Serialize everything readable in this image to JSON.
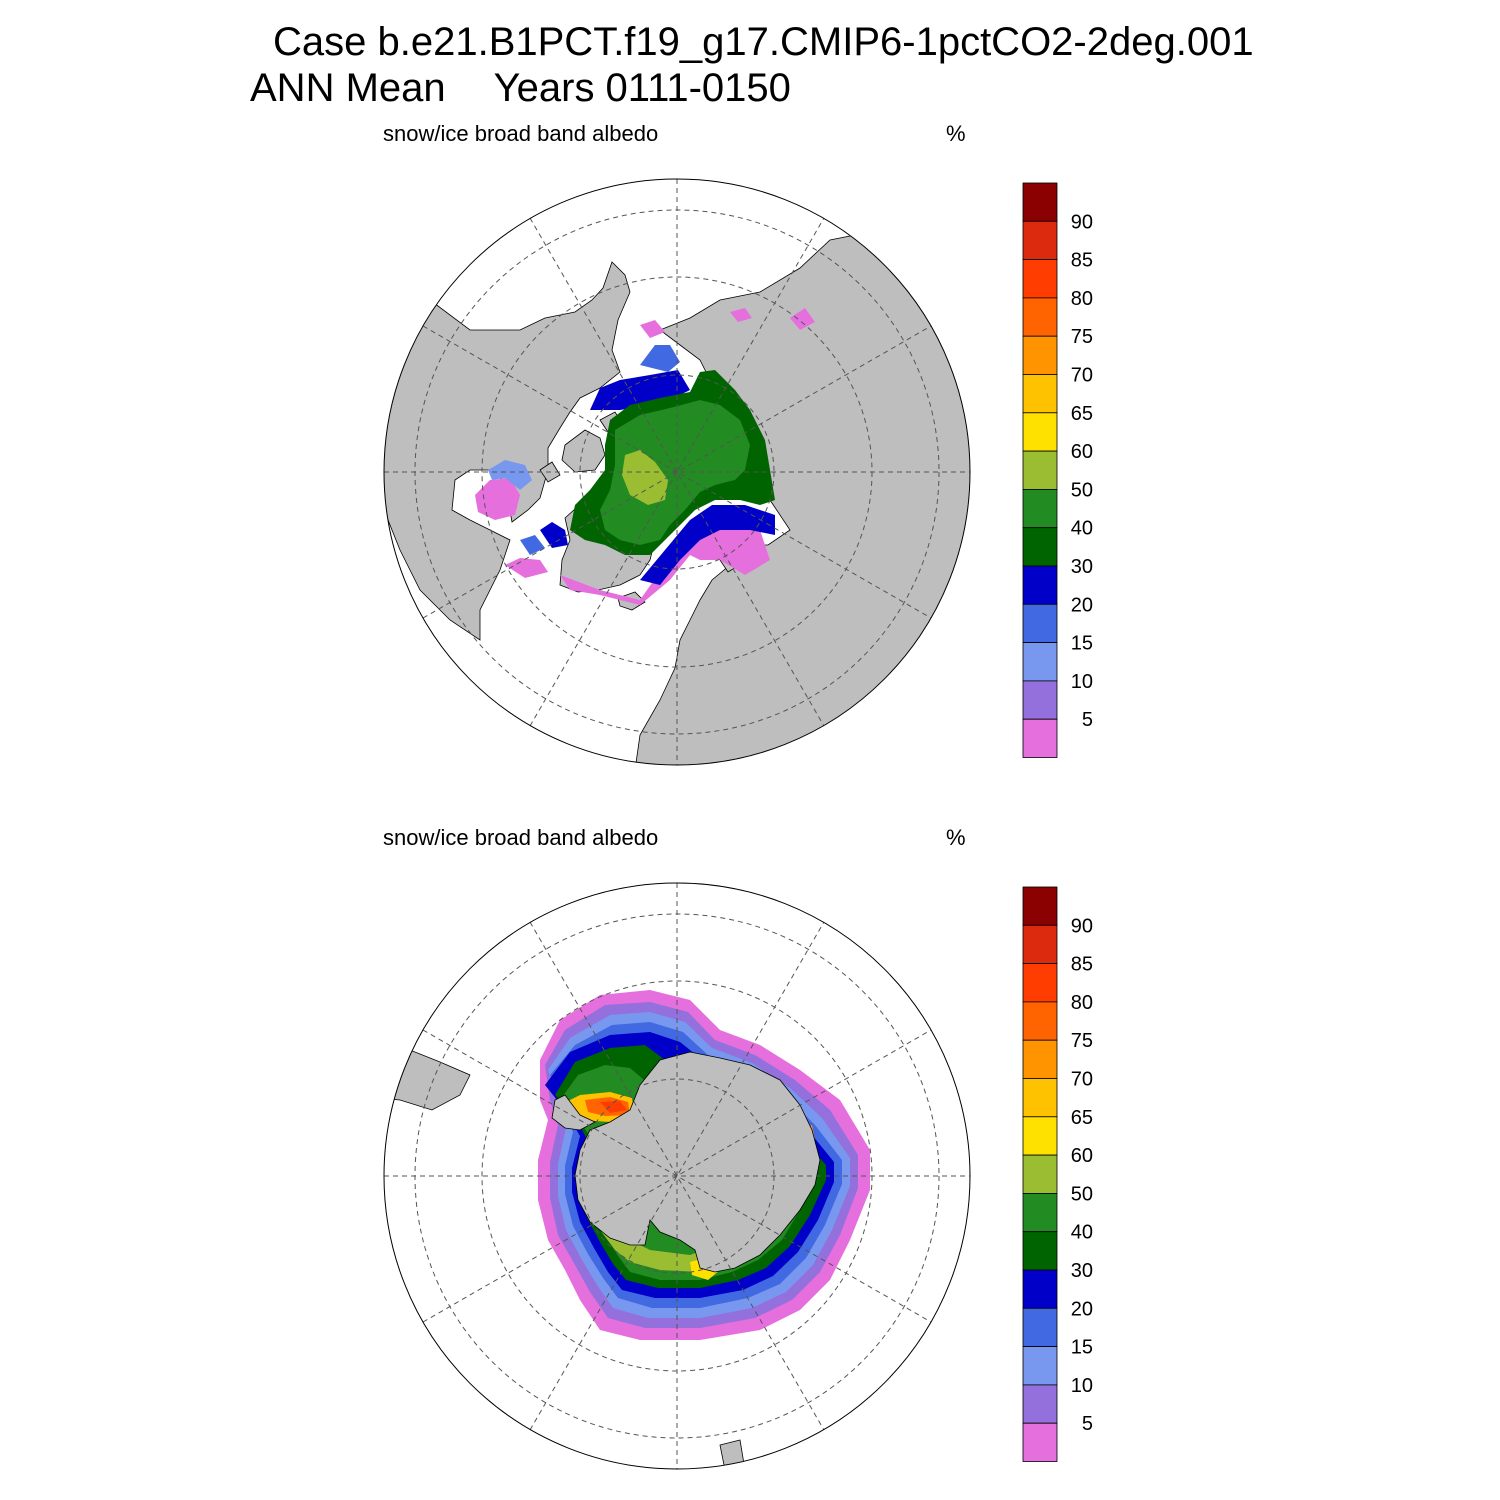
{
  "title": {
    "case": "Case b.e21.B1PCT.f19_g17.CMIP6-1pctCO2-2deg.001",
    "season": "ANN Mean",
    "years": "Years 0111-0150"
  },
  "panels": [
    {
      "id": "north",
      "variable": "snow/ice broad band albedo",
      "units": "%"
    },
    {
      "id": "south",
      "variable": "snow/ice broad band albedo",
      "units": "%"
    }
  ],
  "colorbar": {
    "labels": [
      "90",
      "85",
      "80",
      "75",
      "70",
      "65",
      "60",
      "50",
      "40",
      "30",
      "20",
      "15",
      "10",
      "5"
    ],
    "levels": [
      5,
      10,
      15,
      20,
      30,
      40,
      50,
      60,
      65,
      70,
      75,
      80,
      85,
      90
    ],
    "colors_top_to_bottom": [
      "#8b0000",
      "#dc2a0f",
      "#ff3d00",
      "#ff6400",
      "#ff9400",
      "#ffc200",
      "#ffe100",
      "#9abd32",
      "#228b22",
      "#006400",
      "#0000c8",
      "#4169e1",
      "#7898f0",
      "#9370db",
      "#e66fde"
    ]
  },
  "colors": {
    "land": "#bebebe",
    "ocean": "#ffffff",
    "grid": "#555555"
  }
}
